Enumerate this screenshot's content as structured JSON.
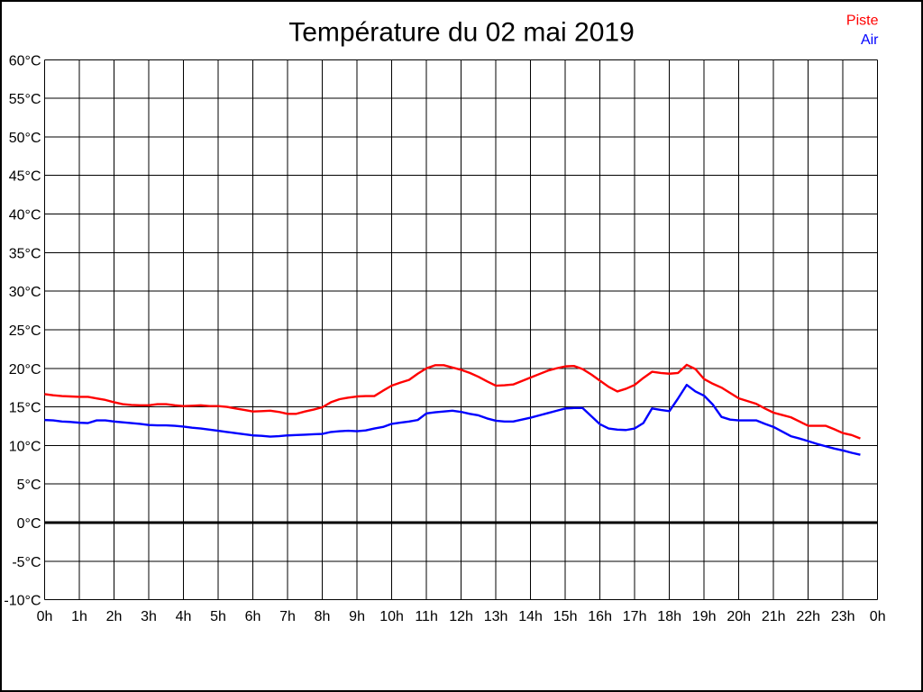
{
  "title": "Température du 02 mai 2019",
  "legend": {
    "position": "top-right",
    "items": [
      {
        "label": "Piste",
        "color": "#ff0000"
      },
      {
        "label": "Air",
        "color": "#0000ff"
      }
    ]
  },
  "colors": {
    "background": "#ffffff",
    "border": "#000000",
    "grid": "#000000",
    "zero_line": "#000000",
    "text": "#000000"
  },
  "chart_data": {
    "type": "line",
    "title": "Température du 02 mai 2019",
    "xlabel": "",
    "ylabel": "",
    "x_unit": "hour of day",
    "y_unit": "°C",
    "xlim": [
      0,
      24
    ],
    "ylim": [
      -10,
      60
    ],
    "x_tick_step_hours": 1,
    "y_tick_step_degrees": 5,
    "grid": true,
    "x_tick_labels": [
      "0h",
      "1h",
      "2h",
      "3h",
      "4h",
      "5h",
      "6h",
      "7h",
      "8h",
      "9h",
      "10h",
      "11h",
      "12h",
      "13h",
      "14h",
      "15h",
      "16h",
      "17h",
      "18h",
      "19h",
      "20h",
      "21h",
      "22h",
      "23h",
      "0h"
    ],
    "y_tick_labels": [
      "60°C",
      "55°C",
      "50°C",
      "45°C",
      "40°C",
      "35°C",
      "30°C",
      "25°C",
      "20°C",
      "15°C",
      "10°C",
      "5°C",
      "0°C",
      "-5°C",
      "-10°C"
    ],
    "zero_line": {
      "value": 0,
      "color": "#000000",
      "width": 3
    },
    "legend_position": "top-right",
    "x": [
      0.0,
      0.25,
      0.5,
      0.75,
      1.0,
      1.25,
      1.5,
      1.75,
      2.0,
      2.25,
      2.5,
      2.75,
      3.0,
      3.25,
      3.5,
      3.75,
      4.0,
      4.25,
      4.5,
      4.75,
      5.0,
      5.25,
      5.5,
      5.75,
      6.0,
      6.25,
      6.5,
      6.75,
      7.0,
      7.25,
      7.5,
      7.75,
      8.0,
      8.25,
      8.5,
      8.75,
      9.0,
      9.25,
      9.5,
      9.75,
      10.0,
      10.25,
      10.5,
      10.75,
      11.0,
      11.25,
      11.5,
      11.75,
      12.0,
      12.25,
      12.5,
      12.75,
      13.0,
      13.25,
      13.5,
      13.75,
      14.0,
      14.25,
      14.5,
      14.75,
      15.0,
      15.25,
      15.5,
      15.75,
      16.0,
      16.25,
      16.5,
      16.75,
      17.0,
      17.25,
      17.5,
      17.75,
      18.0,
      18.25,
      18.5,
      18.75,
      19.0,
      19.25,
      19.5,
      19.75,
      20.0,
      20.25,
      20.5,
      20.75,
      21.0,
      21.25,
      21.5,
      21.75,
      22.0,
      22.25,
      22.5,
      22.75,
      23.0,
      23.25,
      23.5
    ],
    "series": [
      {
        "name": "Piste",
        "color": "#ff0000",
        "values": [
          16.65,
          16.5,
          16.4,
          16.35,
          16.3,
          16.3,
          16.1,
          15.9,
          15.6,
          15.35,
          15.25,
          15.2,
          15.2,
          15.35,
          15.35,
          15.2,
          15.1,
          15.15,
          15.2,
          15.1,
          15.1,
          15.0,
          14.8,
          14.6,
          14.4,
          14.45,
          14.5,
          14.35,
          14.1,
          14.1,
          14.4,
          14.65,
          14.95,
          15.6,
          16.0,
          16.2,
          16.35,
          16.4,
          16.4,
          17.1,
          17.75,
          18.15,
          18.5,
          19.3,
          20.0,
          20.4,
          20.4,
          20.1,
          19.8,
          19.4,
          18.9,
          18.3,
          17.75,
          17.8,
          17.9,
          18.35,
          18.8,
          19.25,
          19.7,
          20.0,
          20.25,
          20.3,
          19.9,
          19.2,
          18.4,
          17.6,
          17.0,
          17.35,
          17.85,
          18.75,
          19.55,
          19.4,
          19.3,
          19.4,
          20.45,
          19.9,
          18.6,
          18.0,
          17.5,
          16.8,
          16.1,
          15.75,
          15.4,
          14.8,
          14.25,
          13.95,
          13.65,
          13.1,
          12.55,
          12.55,
          12.55,
          12.1,
          11.6,
          11.35,
          10.9
        ]
      },
      {
        "name": "Air",
        "color": "#0000ff",
        "values": [
          13.3,
          13.25,
          13.1,
          13.05,
          12.95,
          12.9,
          13.25,
          13.25,
          13.1,
          13.0,
          12.9,
          12.8,
          12.65,
          12.6,
          12.6,
          12.55,
          12.45,
          12.3,
          12.2,
          12.05,
          11.9,
          11.75,
          11.6,
          11.45,
          11.3,
          11.25,
          11.15,
          11.2,
          11.3,
          11.35,
          11.4,
          11.45,
          11.5,
          11.75,
          11.85,
          11.9,
          11.85,
          11.95,
          12.2,
          12.4,
          12.8,
          12.95,
          13.1,
          13.3,
          14.15,
          14.3,
          14.4,
          14.5,
          14.35,
          14.1,
          13.9,
          13.5,
          13.2,
          13.1,
          13.1,
          13.35,
          13.6,
          13.9,
          14.2,
          14.5,
          14.8,
          14.85,
          14.85,
          13.8,
          12.75,
          12.2,
          12.05,
          12.0,
          12.2,
          12.9,
          14.8,
          14.6,
          14.45,
          16.1,
          17.85,
          17.0,
          16.45,
          15.3,
          13.7,
          13.35,
          13.25,
          13.25,
          13.25,
          12.8,
          12.4,
          11.8,
          11.2,
          10.9,
          10.55,
          10.2,
          9.9,
          9.6,
          9.35,
          9.05,
          8.8
        ]
      }
    ]
  }
}
